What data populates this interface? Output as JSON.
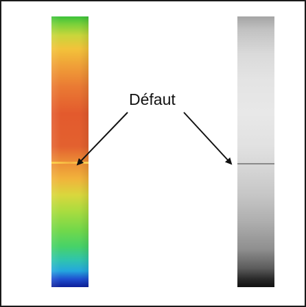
{
  "annotation": {
    "label": "Défaut"
  },
  "colors": {
    "frame_border": "#1a1a1a",
    "arrow": "#111111",
    "label_text": "#111111"
  },
  "strips": [
    {
      "name": "thermal-color-strip",
      "style": "false-color heatmap (green-yellow-red-blue)"
    },
    {
      "name": "grayscale-strip",
      "style": "grayscale"
    }
  ]
}
